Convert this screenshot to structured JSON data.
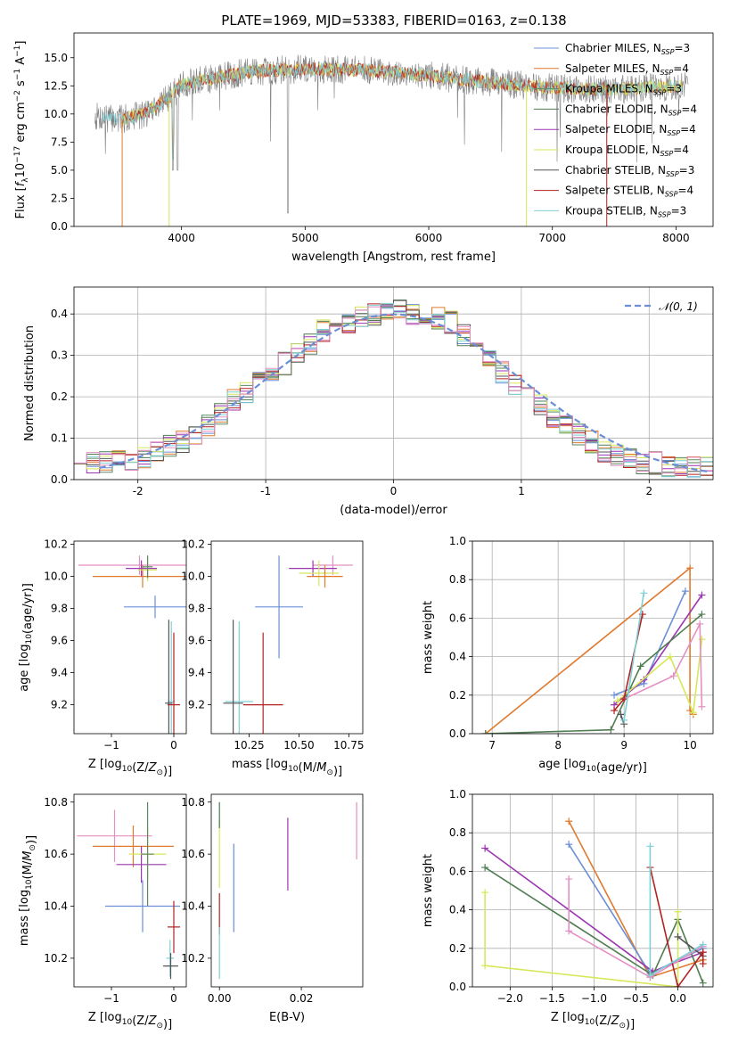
{
  "title": "PLATE=1969, MJD=53383, FIBERID=0163, z=0.138",
  "colors": {
    "chabrier_miles": "#6b8fd6",
    "salpeter_miles": "#e07a2e",
    "kroupa_miles": "#5c8a62",
    "chabrier_elodie": "#4f7d50",
    "salpeter_elodie": "#9b37b0",
    "kroupa_elodie": "#d6e85a",
    "chabrier_stelib": "#555555",
    "salpeter_stelib": "#b22222",
    "kroupa_stelib": "#7fcfd6",
    "pink": "#e58fc4",
    "normal": "#6b8fd6"
  },
  "chart_data": [
    {
      "id": "spectrum",
      "type": "line",
      "xlabel": "wavelength [Angstrom, rest frame]",
      "ylabel": "Flux [f_λ10^-17 erg cm^-2 s^-1 A^-1]",
      "xlim": [
        3130,
        8300
      ],
      "ylim": [
        0,
        17.2
      ],
      "xticks": [
        4000,
        5000,
        6000,
        7000,
        8000
      ],
      "yticks": [
        0.0,
        2.5,
        5.0,
        7.5,
        10.0,
        12.5,
        15.0
      ],
      "ytick_labels": [
        "0.0",
        "2.5",
        "5.0",
        "7.5",
        "10.0",
        "12.5",
        "15.0"
      ],
      "grid": false,
      "legend_position": "top-right",
      "legend": [
        {
          "label": "Chabrier MILES, N",
          "sub": "SSP",
          "n": "=3"
        },
        {
          "label": "Salpeter MILES, N",
          "sub": "SSP",
          "n": "=4"
        },
        {
          "label": "Kroupa MILES, N",
          "sub": "SSP",
          "n": "=3"
        },
        {
          "label": "Chabrier ELODIE, N",
          "sub": "SSP",
          "n": "=4"
        },
        {
          "label": "Salpeter ELODIE, N",
          "sub": "SSP",
          "n": "=4"
        },
        {
          "label": "Kroupa ELODIE, N",
          "sub": "SSP",
          "n": "=4"
        },
        {
          "label": "Chabrier STELIB, N",
          "sub": "SSP",
          "n": "=3"
        },
        {
          "label": "Salpeter STELIB, N",
          "sub": "SSP",
          "n": "=4"
        },
        {
          "label": "Kroupa STELIB, N",
          "sub": "SSP",
          "n": "=3"
        }
      ],
      "data_range": [
        3300,
        8100
      ],
      "flux_profile": [
        [
          3300,
          9.8
        ],
        [
          3500,
          9.5
        ],
        [
          3700,
          10.0
        ],
        [
          3900,
          11.5
        ],
        [
          4000,
          12.6
        ],
        [
          4300,
          13.3
        ],
        [
          4600,
          13.8
        ],
        [
          5000,
          14.0
        ],
        [
          5500,
          13.9
        ],
        [
          6000,
          13.4
        ],
        [
          6500,
          12.8
        ],
        [
          7000,
          12.3
        ],
        [
          7500,
          12.2
        ],
        [
          8000,
          12.5
        ],
        [
          8100,
          12.4
        ]
      ]
    },
    {
      "id": "residuals",
      "type": "step",
      "xlabel": "(data-model)/error",
      "ylabel": "Normed distribution",
      "xlim": [
        -2.5,
        2.5
      ],
      "ylim": [
        0,
        0.465
      ],
      "xticks": [
        -2,
        -1,
        0,
        1,
        2
      ],
      "yticks": [
        0.0,
        0.1,
        0.2,
        0.3,
        0.4
      ],
      "ytick_labels": [
        "0.0",
        "0.1",
        "0.2",
        "0.3",
        "0.4"
      ],
      "grid": true,
      "legend_position": "top-right",
      "normal_label": "𝒩(0, 1)",
      "bin_start": -2.5,
      "bin_width": 0.1,
      "base_hist": [
        0.05,
        0.04,
        0.04,
        0.05,
        0.05,
        0.05,
        0.07,
        0.08,
        0.09,
        0.11,
        0.13,
        0.16,
        0.19,
        0.21,
        0.24,
        0.26,
        0.28,
        0.31,
        0.33,
        0.36,
        0.37,
        0.38,
        0.39,
        0.4,
        0.4,
        0.41,
        0.4,
        0.4,
        0.39,
        0.38,
        0.35,
        0.32,
        0.29,
        0.26,
        0.23,
        0.2,
        0.18,
        0.15,
        0.13,
        0.11,
        0.09,
        0.07,
        0.06,
        0.05,
        0.04,
        0.04,
        0.03,
        0.03,
        0.03,
        0.03
      ]
    },
    {
      "id": "age_vs_Z",
      "type": "errorbar",
      "xlabel": "Z [log10(Z/Z⊙)]",
      "ylabel": "age  [log10(age/yr)]",
      "xlim": [
        -1.6,
        0.2
      ],
      "ylim": [
        9.02,
        10.22
      ],
      "xticks": [
        -1,
        0
      ],
      "xtick_labels": [
        "−1",
        "0"
      ],
      "yticks": [
        9.2,
        9.4,
        9.6,
        9.8,
        10.0,
        10.2
      ],
      "ytick_labels": [
        "9.2",
        "9.4",
        "9.6",
        "9.8",
        "10.0",
        "10.2"
      ],
      "points": [
        {
          "c": "pink",
          "x": -0.55,
          "xerr": 0.98,
          "y": 10.07,
          "yerr": 0.06
        },
        {
          "c": "salpeter_miles",
          "x": -0.5,
          "xerr": 0.8,
          "y": 10.0,
          "yerr": 0.07
        },
        {
          "c": "salpeter_elodie",
          "x": -0.52,
          "xerr": 0.25,
          "y": 10.05,
          "yerr": 0.05
        },
        {
          "c": "kroupa_elodie",
          "x": -0.42,
          "xerr": 0.15,
          "y": 10.04,
          "yerr": 0.07
        },
        {
          "c": "kroupa_miles",
          "x": -0.42,
          "xerr": 0.08,
          "y": 10.06,
          "yerr": 0.07
        },
        {
          "c": "chabrier_miles",
          "x": -0.3,
          "xerr": 0.5,
          "y": 9.81,
          "yerr": 0.07
        },
        {
          "c": "kroupa_stelib",
          "x": -0.04,
          "xerr": 0.06,
          "y": 9.22,
          "yerr": 0.5
        },
        {
          "c": "chabrier_stelib",
          "x": -0.08,
          "xerr": 0.06,
          "y": 9.21,
          "yerr": 0.52
        },
        {
          "c": "salpeter_stelib",
          "x": 0.0,
          "xerr": 0.1,
          "y": 9.2,
          "yerr": 0.45
        }
      ]
    },
    {
      "id": "age_vs_mass",
      "type": "errorbar",
      "xlabel": "mass [log10(M/M⊙)]",
      "ylabel": "",
      "xlim": [
        10.06,
        10.82
      ],
      "ylim": [
        9.02,
        10.22
      ],
      "xticks": [
        10.25,
        10.5,
        10.75
      ],
      "xtick_labels": [
        "10.25",
        "10.50",
        "10.75"
      ],
      "yticks": [
        9.2,
        9.4,
        9.6,
        9.8,
        10.0,
        10.2
      ],
      "ytick_labels": [
        "9.2",
        "9.4",
        "9.6",
        "9.8",
        "10.0",
        "10.2"
      ],
      "points": [
        {
          "c": "pink",
          "x": 10.67,
          "xerr": 0.1,
          "y": 10.07,
          "yerr": 0.06
        },
        {
          "c": "salpeter_elodie",
          "x": 10.57,
          "xerr": 0.12,
          "y": 10.05,
          "yerr": 0.05
        },
        {
          "c": "kroupa_elodie",
          "x": 10.6,
          "xerr": 0.1,
          "y": 10.02,
          "yerr": 0.08
        },
        {
          "c": "salpeter_miles",
          "x": 10.63,
          "xerr": 0.09,
          "y": 10.0,
          "yerr": 0.07
        },
        {
          "c": "chabrier_miles",
          "x": 10.4,
          "xerr": 0.12,
          "y": 9.81,
          "yerr": 0.32
        },
        {
          "c": "kroupa_stelib",
          "x": 10.2,
          "xerr": 0.07,
          "y": 9.22,
          "yerr": 0.5
        },
        {
          "c": "chabrier_stelib",
          "x": 10.17,
          "xerr": 0.05,
          "y": 9.21,
          "yerr": 0.52
        },
        {
          "c": "salpeter_stelib",
          "x": 10.32,
          "xerr": 0.1,
          "y": 9.2,
          "yerr": 0.45
        }
      ]
    },
    {
      "id": "weight_vs_age",
      "type": "line",
      "xlabel": "age  [log10(age/yr)]",
      "ylabel": "mass weight",
      "xlim": [
        6.7,
        10.35
      ],
      "ylim": [
        0,
        1.0
      ],
      "xticks": [
        7,
        8,
        9,
        10
      ],
      "xtick_labels": [
        "7",
        "8",
        "9",
        "10"
      ],
      "yticks": [
        0.0,
        0.2,
        0.4,
        0.6,
        0.8,
        1.0
      ],
      "ytick_labels": [
        "0.0",
        "0.2",
        "0.4",
        "0.6",
        "0.8",
        "1.0"
      ],
      "grid": true,
      "series": [
        {
          "c": "salpeter_miles",
          "points": [
            [
              6.9,
              0.0
            ],
            [
              10.0,
              0.86
            ],
            [
              10.0,
              0.12
            ],
            [
              10.05,
              0.1
            ]
          ]
        },
        {
          "c": "chabrier_miles",
          "points": [
            [
              8.85,
              0.2
            ],
            [
              9.3,
              0.26
            ],
            [
              9.93,
              0.74
            ]
          ]
        },
        {
          "c": "salpeter_elodie",
          "points": [
            [
              8.85,
              0.15
            ],
            [
              9.3,
              0.28
            ],
            [
              10.18,
              0.72
            ]
          ]
        },
        {
          "c": "chabrier_elodie",
          "points": [
            [
              6.9,
              0.0
            ],
            [
              8.8,
              0.02
            ],
            [
              9.25,
              0.35
            ],
            [
              10.18,
              0.62
            ]
          ]
        },
        {
          "c": "kroupa_elodie",
          "points": [
            [
              8.9,
              0.17
            ],
            [
              9.7,
              0.4
            ],
            [
              10.05,
              0.11
            ],
            [
              10.18,
              0.49
            ]
          ]
        },
        {
          "c": "pink",
          "points": [
            [
              9.0,
              0.18
            ],
            [
              9.75,
              0.3
            ],
            [
              10.15,
              0.57
            ],
            [
              10.18,
              0.14
            ]
          ]
        },
        {
          "c": "chabrier_stelib",
          "points": [
            [
              8.95,
              0.1
            ],
            [
              9.0,
              0.05
            ]
          ]
        },
        {
          "c": "salpeter_stelib",
          "points": [
            [
              8.85,
              0.12
            ],
            [
              9.0,
              0.18
            ],
            [
              9.28,
              0.62
            ]
          ]
        },
        {
          "c": "kroupa_stelib",
          "points": [
            [
              9.0,
              0.07
            ],
            [
              9.3,
              0.73
            ]
          ]
        }
      ]
    },
    {
      "id": "mass_vs_Z",
      "type": "errorbar",
      "xlabel": "Z [log10(Z/Z⊙)]",
      "ylabel": "mass [log10(M/M⊙)]",
      "xlim": [
        -1.6,
        0.2
      ],
      "ylim": [
        10.09,
        10.83
      ],
      "xticks": [
        -1,
        0
      ],
      "xtick_labels": [
        "−1",
        "0"
      ],
      "yticks": [
        10.2,
        10.4,
        10.6,
        10.8
      ],
      "ytick_labels": [
        "10.2",
        "10.4",
        "10.6",
        "10.8"
      ],
      "points": [
        {
          "c": "pink",
          "x": -0.95,
          "xerr": 0.6,
          "y": 10.67,
          "yerr": 0.1
        },
        {
          "c": "salpeter_miles",
          "x": -0.65,
          "xerr": 0.65,
          "y": 10.63,
          "yerr": 0.08
        },
        {
          "c": "salpeter_elodie",
          "x": -0.52,
          "xerr": 0.4,
          "y": 10.56,
          "yerr": 0.07
        },
        {
          "c": "kroupa_elodie",
          "x": -0.42,
          "xerr": 0.3,
          "y": 10.6,
          "yerr": 0.1
        },
        {
          "c": "kroupa_miles",
          "x": -0.42,
          "xerr": 0.1,
          "y": 10.6,
          "yerr": 0.2
        },
        {
          "c": "chabrier_miles",
          "x": -0.5,
          "xerr": 0.6,
          "y": 10.4,
          "yerr": 0.1
        },
        {
          "c": "kroupa_stelib",
          "x": -0.06,
          "xerr": 0.06,
          "y": 10.2,
          "yerr": 0.07
        },
        {
          "c": "chabrier_stelib",
          "x": -0.05,
          "xerr": 0.12,
          "y": 10.17,
          "yerr": 0.05
        },
        {
          "c": "salpeter_stelib",
          "x": 0.0,
          "xerr": 0.1,
          "y": 10.32,
          "yerr": 0.1
        }
      ]
    },
    {
      "id": "mass_vs_EBV",
      "type": "errorbar",
      "xlabel": "E(B-V)",
      "ylabel": "",
      "xlim": [
        -0.002,
        0.035
      ],
      "ylim": [
        10.09,
        10.83
      ],
      "xticks": [
        0.0,
        0.02
      ],
      "xtick_labels": [
        "0.00",
        "0.02"
      ],
      "yticks": [
        10.2,
        10.4,
        10.6,
        10.8
      ],
      "ytick_labels": [
        "10.2",
        "10.4",
        "10.6",
        "10.8"
      ],
      "points": [
        {
          "c": "kroupa_elodie",
          "x": 0.0,
          "xerr": 0.0,
          "y": 10.6,
          "yerr": 0.13
        },
        {
          "c": "chabrier_elodie",
          "x": 0.0,
          "xerr": 0.0,
          "y": 10.75,
          "yerr": 0.05
        },
        {
          "c": "salpeter_stelib",
          "x": 0.0,
          "xerr": 0.0,
          "y": 10.37,
          "yerr": 0.08
        },
        {
          "c": "kroupa_stelib",
          "x": 0.0,
          "xerr": 0.0,
          "y": 10.22,
          "yerr": 0.1
        },
        {
          "c": "chabrier_miles",
          "x": 0.0035,
          "xerr": 0.0,
          "y": 10.47,
          "yerr": 0.17
        },
        {
          "c": "salpeter_elodie",
          "x": 0.0167,
          "xerr": 0.0,
          "y": 10.6,
          "yerr": 0.14
        },
        {
          "c": "pink",
          "x": 0.0335,
          "xerr": 0.0,
          "y": 10.69,
          "yerr": 0.11
        }
      ]
    },
    {
      "id": "weight_vs_Z",
      "type": "line",
      "xlabel": "Z [log10(Z/Z⊙)]",
      "ylabel": "mass weight",
      "xlim": [
        -2.45,
        0.42
      ],
      "ylim": [
        0,
        1.0
      ],
      "xticks": [
        -2.0,
        -1.5,
        -1.0,
        -0.5,
        0.0
      ],
      "xtick_labels": [
        "−2.0",
        "−1.5",
        "−1.0",
        "−0.5",
        "0.0"
      ],
      "yticks": [
        0.0,
        0.2,
        0.4,
        0.6,
        0.8,
        1.0
      ],
      "ytick_labels": [
        "0.0",
        "0.2",
        "0.4",
        "0.6",
        "0.8",
        "1.0"
      ],
      "grid": true,
      "series": [
        {
          "c": "salpeter_miles",
          "points": [
            [
              -1.3,
              0.86
            ],
            [
              -0.33,
              0.05
            ],
            [
              0.3,
              0.14
            ]
          ]
        },
        {
          "c": "chabrier_miles",
          "points": [
            [
              -1.3,
              0.74
            ],
            [
              -0.33,
              0.07
            ],
            [
              0.3,
              0.2
            ]
          ]
        },
        {
          "c": "salpeter_elodie",
          "points": [
            [
              -2.3,
              0.72
            ],
            [
              -0.3,
              0.08
            ],
            [
              0.3,
              0.18
            ]
          ]
        },
        {
          "c": "chabrier_elodie",
          "points": [
            [
              -2.3,
              0.62
            ],
            [
              -0.3,
              0.06
            ],
            [
              0.0,
              0.35
            ],
            [
              0.3,
              0.02
            ]
          ]
        },
        {
          "c": "kroupa_elodie",
          "points": [
            [
              -2.3,
              0.49
            ],
            [
              -2.3,
              0.11
            ],
            [
              0.0,
              0.0
            ],
            [
              0.0,
              0.39
            ]
          ]
        },
        {
          "c": "pink",
          "points": [
            [
              -1.3,
              0.56
            ],
            [
              -1.3,
              0.29
            ],
            [
              -0.33,
              0.05
            ],
            [
              0.3,
              0.21
            ]
          ]
        },
        {
          "c": "chabrier_stelib",
          "points": [
            [
              0.0,
              0.26
            ],
            [
              0.3,
              0.16
            ]
          ]
        },
        {
          "c": "salpeter_stelib",
          "points": [
            [
              -0.33,
              0.62
            ],
            [
              0.0,
              0.0
            ],
            [
              0.3,
              0.18
            ],
            [
              0.3,
              0.12
            ]
          ]
        },
        {
          "c": "kroupa_stelib",
          "points": [
            [
              -0.33,
              0.73
            ],
            [
              -0.33,
              0.06
            ],
            [
              0.3,
              0.22
            ]
          ]
        }
      ]
    }
  ]
}
